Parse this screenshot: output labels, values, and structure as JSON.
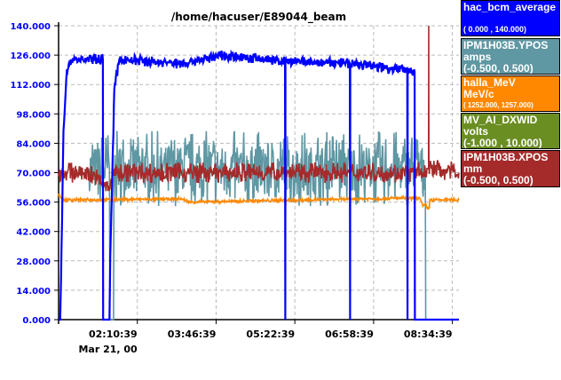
{
  "chart_data": {
    "type": "line",
    "title": "/home/hacuser/E89044_beam",
    "ylim": [
      0,
      140
    ],
    "yticks": [
      "0.000",
      "14.000",
      "28.000",
      "42.000",
      "56.000",
      "70.000",
      "84.000",
      "98.000",
      "112.000",
      "126.000",
      "140.000"
    ],
    "xlim_minutes_from_start": [
      0,
      488
    ],
    "xticks": [
      {
        "label": "02:10:39",
        "t": 96
      },
      {
        "label": "03:46:39",
        "t": 192
      },
      {
        "label": "05:22:39",
        "t": 288
      },
      {
        "label": "06:58:39",
        "t": 384
      },
      {
        "label": "08:34:39",
        "t": 480
      }
    ],
    "date_label": "Mar 21, 00",
    "grid": true,
    "legend_placement": "right",
    "series": [
      {
        "name": "IPM1H03B.YPOS",
        "unit": "amps",
        "range": "(-0.500, 0.500)",
        "color": "#5f97a3",
        "noise": 18,
        "knots": [
          [
            37,
            72
          ],
          [
            62,
            72
          ],
          [
            62.5,
            0
          ],
          [
            67,
            0
          ],
          [
            67.5,
            72
          ],
          [
            447,
            72
          ],
          [
            447.5,
            0
          ],
          [
            452,
            0
          ]
        ]
      },
      {
        "name": "halla_MeV",
        "unit": "MeV/c",
        "range": "( 1252.000, 1257.000)",
        "color": "#ff8800",
        "noise": 0.8,
        "knots": [
          [
            0,
            60
          ],
          [
            3,
            58
          ],
          [
            6,
            57
          ],
          [
            150,
            57.5
          ],
          [
            160,
            56
          ],
          [
            440,
            58
          ],
          [
            444,
            54
          ],
          [
            448,
            55
          ],
          [
            449,
            53
          ],
          [
            452,
            53
          ],
          [
            452.5,
            57
          ],
          [
            488,
            57
          ]
        ]
      },
      {
        "name": "IPM1H03B.XPOS",
        "unit": "mm",
        "range": "(-0.500, 0.500)",
        "color": "#a52a2a",
        "noise": 5,
        "knots": [
          [
            0,
            70
          ],
          [
            37,
            70
          ],
          [
            62,
            62
          ],
          [
            66,
            70
          ],
          [
            445,
            70
          ],
          [
            449,
            72
          ],
          [
            451,
            72
          ],
          [
            451.2,
            140
          ],
          [
            451.4,
            72
          ],
          [
            488,
            70
          ]
        ]
      },
      {
        "name": "hac_bcm_average",
        "unit": "",
        "range": "( 0.000 , 140.000)",
        "color": "#0000ff",
        "noise": 2.5,
        "knots": [
          [
            0,
            0
          ],
          [
            2,
            0
          ],
          [
            3,
            20
          ],
          [
            6,
            90
          ],
          [
            10,
            118
          ],
          [
            16,
            124
          ],
          [
            54,
            124
          ],
          [
            54.3,
            0
          ],
          [
            62,
            0
          ],
          [
            63,
            30
          ],
          [
            68,
            110
          ],
          [
            74,
            124
          ],
          [
            150,
            122
          ],
          [
            200,
            126
          ],
          [
            276,
            123
          ],
          [
            276.3,
            0
          ],
          [
            276.6,
            123
          ],
          [
            355,
            122
          ],
          [
            355.3,
            0
          ],
          [
            355.6,
            122
          ],
          [
            425,
            119
          ],
          [
            425.3,
            0
          ],
          [
            425.6,
            119
          ],
          [
            434,
            118
          ],
          [
            434.3,
            0
          ],
          [
            488,
            0
          ]
        ]
      }
    ]
  },
  "legend": [
    {
      "name": "hac_bcm_average",
      "unit": "",
      "range": "( 0.000 , 140.000)",
      "color": "#0000ff"
    },
    {
      "name": "IPM1H03B.YPOS",
      "unit": "amps",
      "range": "(-0.500, 0.500)",
      "color": "#5f97a3"
    },
    {
      "name": "halla_MeV",
      "unit": "MeV/c",
      "range": "( 1252.000, 1257.000)",
      "color": "#ff8800"
    },
    {
      "name": "MV_AI_DXWID",
      "unit": "volts",
      "range": "(-1.000 , 10.000)",
      "color": "#6b8e23"
    },
    {
      "name": "IPM1H03B.XPOS",
      "unit": "mm",
      "range": "(-0.500, 0.500)",
      "color": "#a52a2a"
    }
  ]
}
